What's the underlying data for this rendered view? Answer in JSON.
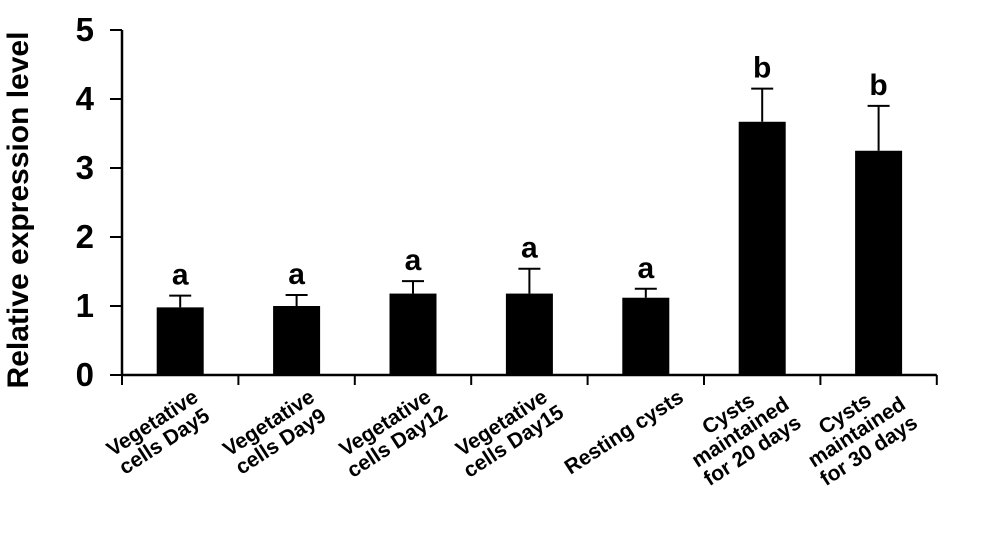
{
  "figure": {
    "background": "#ffffff"
  },
  "chart_data": {
    "type": "bar",
    "title": "",
    "xlabel": "",
    "ylabel": "Relative expression level",
    "ylim": [
      0,
      5
    ],
    "yticks": [
      0,
      1,
      2,
      3,
      4,
      5
    ],
    "grid": false,
    "legend": null,
    "bar_color": "#000000",
    "axis_color": "#000000",
    "text_color": "#000000",
    "categories": [
      "Vegetative cells Day5",
      "Vegetative cells Day9",
      "Vegetative cells Day12",
      "Vegetative cells Day15",
      "Resting cysts",
      "Cysts maintained for 20 days",
      "Cysts maintained for 30 days"
    ],
    "category_lines": [
      [
        "Vegetative",
        "cells Day5"
      ],
      [
        "Vegetative",
        "cells Day9"
      ],
      [
        "Vegetative",
        "cells Day12"
      ],
      [
        "Vegetative",
        "cells Day15"
      ],
      [
        "Resting cysts"
      ],
      [
        "Cysts",
        "maintained",
        "for 20 days"
      ],
      [
        "Cysts",
        "maintained",
        "for 30 days"
      ]
    ],
    "values": [
      0.98,
      1.0,
      1.18,
      1.18,
      1.12,
      3.67,
      3.25
    ],
    "errors_upper": [
      0.17,
      0.16,
      0.18,
      0.36,
      0.13,
      0.48,
      0.65
    ],
    "sig_letters": [
      "a",
      "a",
      "a",
      "a",
      "a",
      "b",
      "b"
    ]
  }
}
